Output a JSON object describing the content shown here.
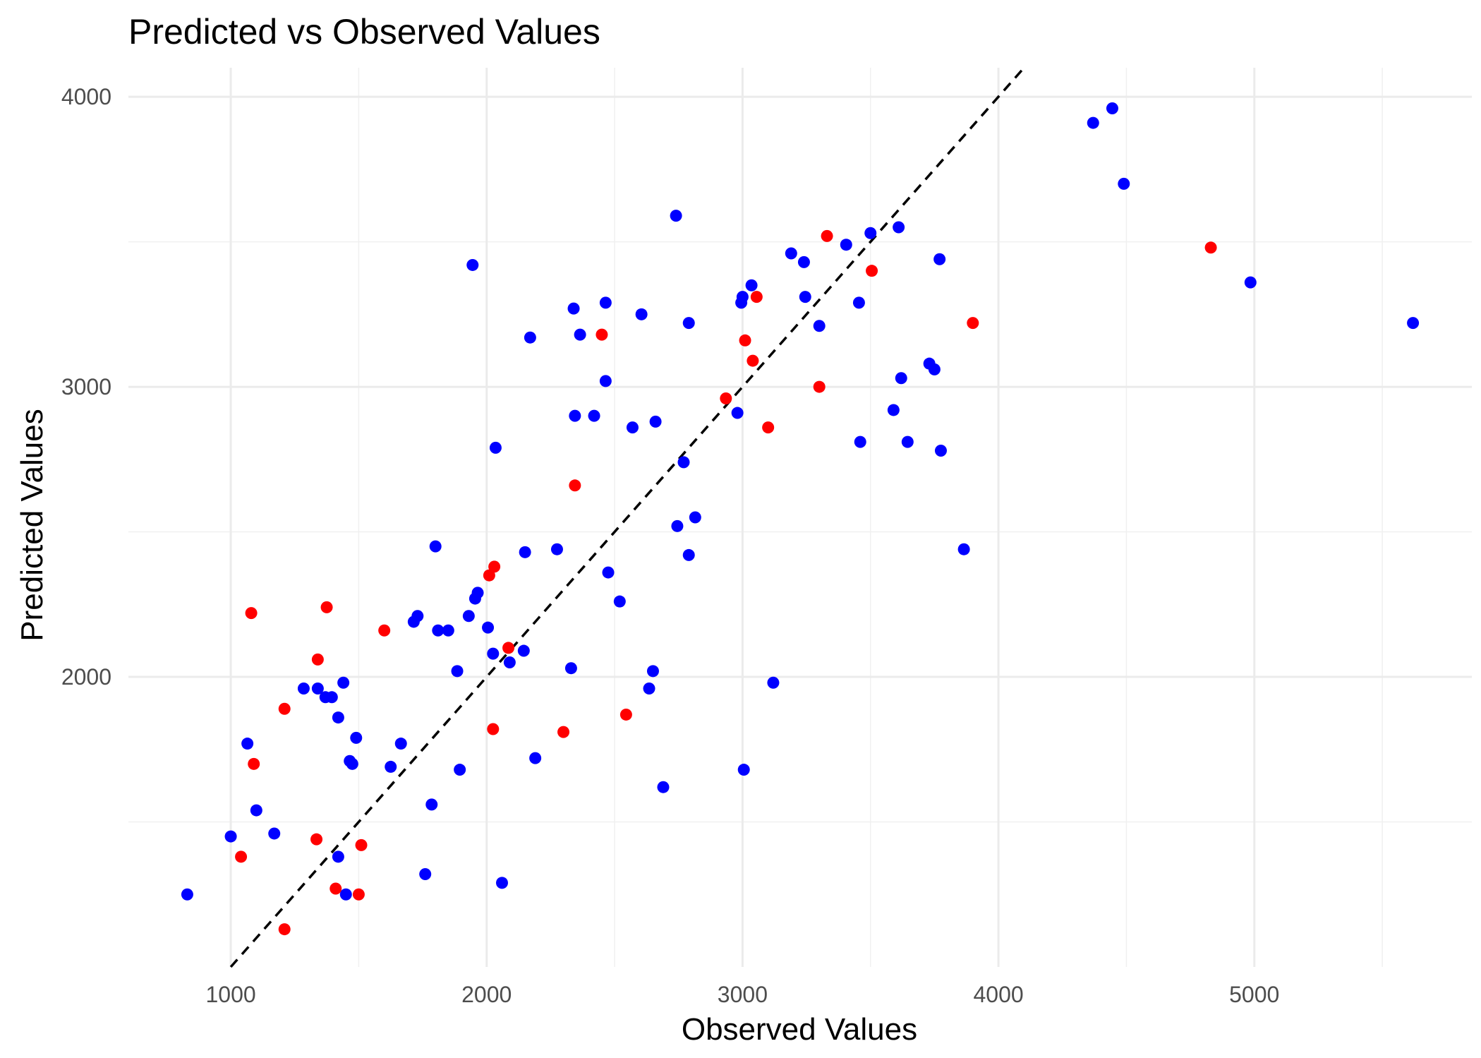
{
  "chart_data": {
    "type": "scatter",
    "title": "Predicted vs Observed Values",
    "xlabel": "Observed Values",
    "ylabel": "Predicted Values",
    "xlim": [
      600,
      5850
    ],
    "ylim": [
      1000,
      4100
    ],
    "x_ticks": [
      1000,
      2000,
      3000,
      4000,
      5000
    ],
    "y_ticks": [
      2000,
      3000,
      4000
    ],
    "x_tick_labels": [
      "1000",
      "2000",
      "3000",
      "4000",
      "5000"
    ],
    "y_tick_labels": [
      "2000",
      "3000",
      "4000"
    ],
    "grid": true,
    "reference_line": {
      "slope": 1,
      "intercept": 0,
      "style": "dashed",
      "color": "#000000"
    },
    "series": [
      {
        "color": "#0000ff",
        "points": [
          [
            830,
            1250
          ],
          [
            1000,
            1450
          ],
          [
            1065,
            1770
          ],
          [
            1100,
            1540
          ],
          [
            1170,
            1460
          ],
          [
            1285,
            1960
          ],
          [
            1340,
            1960
          ],
          [
            1370,
            1930
          ],
          [
            1395,
            1930
          ],
          [
            1420,
            1860
          ],
          [
            1420,
            1380
          ],
          [
            1440,
            1980
          ],
          [
            1450,
            1250
          ],
          [
            1465,
            1710
          ],
          [
            1475,
            1700
          ],
          [
            1490,
            1790
          ],
          [
            1625,
            1690
          ],
          [
            1665,
            1770
          ],
          [
            1715,
            2190
          ],
          [
            1730,
            2210
          ],
          [
            1760,
            1320
          ],
          [
            1785,
            1560
          ],
          [
            1800,
            2450
          ],
          [
            1810,
            2160
          ],
          [
            1850,
            2160
          ],
          [
            1885,
            2020
          ],
          [
            1895,
            1680
          ],
          [
            1930,
            2210
          ],
          [
            1945,
            3420
          ],
          [
            1955,
            2270
          ],
          [
            1965,
            2290
          ],
          [
            2005,
            2170
          ],
          [
            2025,
            2080
          ],
          [
            2035,
            2790
          ],
          [
            2060,
            1290
          ],
          [
            2090,
            2050
          ],
          [
            2145,
            2090
          ],
          [
            2150,
            2430
          ],
          [
            2170,
            3170
          ],
          [
            2190,
            1720
          ],
          [
            2275,
            2440
          ],
          [
            2330,
            2030
          ],
          [
            2340,
            3270
          ],
          [
            2345,
            2900
          ],
          [
            2365,
            3180
          ],
          [
            2420,
            2900
          ],
          [
            2465,
            3020
          ],
          [
            2465,
            3290
          ],
          [
            2475,
            2360
          ],
          [
            2520,
            2260
          ],
          [
            2570,
            2860
          ],
          [
            2605,
            3250
          ],
          [
            2635,
            1960
          ],
          [
            2650,
            2020
          ],
          [
            2660,
            2880
          ],
          [
            2690,
            1620
          ],
          [
            2740,
            3590
          ],
          [
            2745,
            2520
          ],
          [
            2770,
            2740
          ],
          [
            2790,
            2420
          ],
          [
            2790,
            3220
          ],
          [
            2815,
            2550
          ],
          [
            2980,
            2910
          ],
          [
            2995,
            3290
          ],
          [
            3000,
            3310
          ],
          [
            3005,
            1680
          ],
          [
            3035,
            3350
          ],
          [
            3120,
            1980
          ],
          [
            3190,
            3460
          ],
          [
            3240,
            3430
          ],
          [
            3245,
            3310
          ],
          [
            3300,
            3210
          ],
          [
            3405,
            3490
          ],
          [
            3455,
            3290
          ],
          [
            3460,
            2810
          ],
          [
            3500,
            3530
          ],
          [
            3590,
            2920
          ],
          [
            3610,
            3550
          ],
          [
            3620,
            3030
          ],
          [
            3645,
            2810
          ],
          [
            3730,
            3080
          ],
          [
            3750,
            3060
          ],
          [
            3770,
            3440
          ],
          [
            3775,
            2780
          ],
          [
            3865,
            2440
          ],
          [
            4370,
            3910
          ],
          [
            4445,
            3960
          ],
          [
            4490,
            3700
          ],
          [
            4985,
            3360
          ],
          [
            5620,
            3220
          ]
        ]
      },
      {
        "color": "#ff0000",
        "points": [
          [
            1040,
            1380
          ],
          [
            1080,
            2220
          ],
          [
            1090,
            1700
          ],
          [
            1210,
            1890
          ],
          [
            1210,
            1130
          ],
          [
            1335,
            1440
          ],
          [
            1340,
            2060
          ],
          [
            1375,
            2240
          ],
          [
            1410,
            1270
          ],
          [
            1500,
            1250
          ],
          [
            1510,
            1420
          ],
          [
            1600,
            2160
          ],
          [
            2010,
            2350
          ],
          [
            2025,
            1820
          ],
          [
            2030,
            2380
          ],
          [
            2085,
            2100
          ],
          [
            2300,
            1810
          ],
          [
            2345,
            2660
          ],
          [
            2450,
            3180
          ],
          [
            2545,
            1870
          ],
          [
            2935,
            2960
          ],
          [
            3010,
            3160
          ],
          [
            3040,
            3090
          ],
          [
            3055,
            3310
          ],
          [
            3100,
            2860
          ],
          [
            3300,
            3000
          ],
          [
            3330,
            3520
          ],
          [
            3505,
            3400
          ],
          [
            3900,
            3220
          ],
          [
            4830,
            3480
          ]
        ]
      }
    ]
  }
}
